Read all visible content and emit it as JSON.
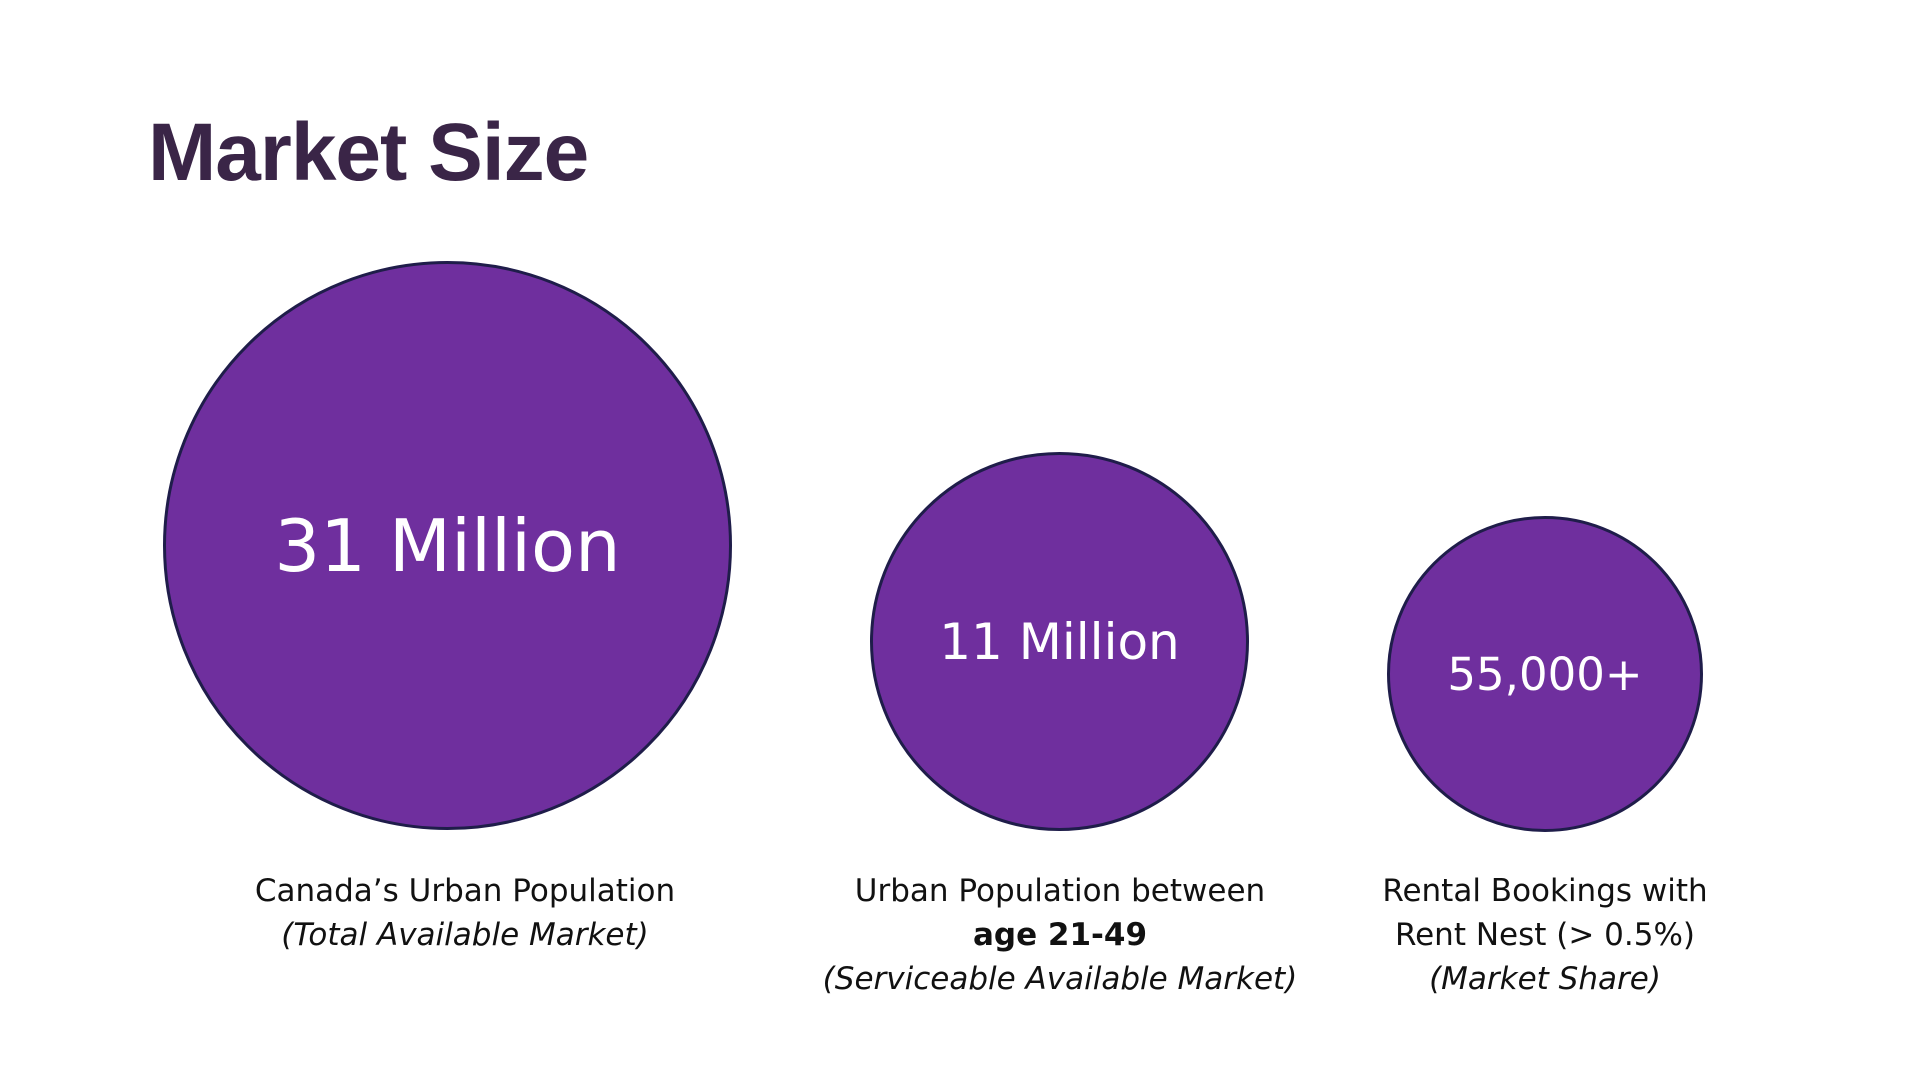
{
  "slide": {
    "title": "Market Size",
    "accent_color": "#6f2f9e",
    "title_color": "#3a2547",
    "circles": [
      {
        "value": "31 Million",
        "caption_line1": "Canada’s Urban Population",
        "caption_line2": "(Total Available Market)"
      },
      {
        "value": "11 Million",
        "caption_line1": "Urban Population between",
        "caption_line2": "age 21-49",
        "caption_line3": "(Serviceable Available Market)"
      },
      {
        "value": "55,000+",
        "caption_line1": "Rental Bookings with",
        "caption_line2": "Rent Nest (> 0.5%)",
        "caption_line3": "(Market Share)"
      }
    ]
  }
}
